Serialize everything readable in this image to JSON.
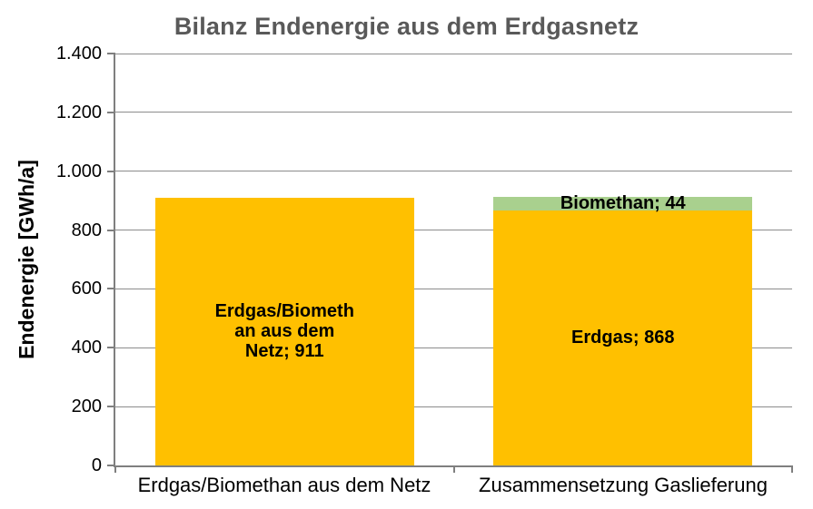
{
  "title": "Bilanz Endenergie aus dem Erdgasnetz",
  "y_axis": {
    "label": "Endenergie [GWh/a]",
    "ticks": [
      {
        "value": 1400,
        "label": "1.400"
      },
      {
        "value": 1200,
        "label": "1.200"
      },
      {
        "value": 1000,
        "label": "1.000"
      },
      {
        "value": 800,
        "label": "800"
      },
      {
        "value": 600,
        "label": "600"
      },
      {
        "value": 400,
        "label": "400"
      },
      {
        "value": 200,
        "label": "200"
      },
      {
        "value": 0,
        "label": "0"
      }
    ]
  },
  "x_axis": {
    "categories": [
      "Erdgas/Biomethan aus dem Netz",
      "Zusammensetzung Gaslieferung"
    ]
  },
  "bars": [
    {
      "category": "Erdgas/Biomethan aus dem Netz",
      "segments": [
        {
          "name": "Erdgas/Biomethan aus dem Netz",
          "value": 911,
          "color": "#FFC000",
          "label_lines": [
            "Erdgas/Biometh",
            "an aus dem",
            "Netz; 911"
          ]
        }
      ]
    },
    {
      "category": "Zusammensetzung Gaslieferung",
      "segments": [
        {
          "name": "Erdgas",
          "value": 868,
          "color": "#FFC000",
          "label_lines": [
            "Erdgas; 868"
          ]
        },
        {
          "name": "Biomethan",
          "value": 44,
          "color": "#A9D08E",
          "label_lines": [
            "Biomethan; 44"
          ]
        }
      ]
    }
  ],
  "colors": {
    "bar_yellow": "#FFC000",
    "bar_green": "#A9D08E",
    "axis_gray": "#7F7F7F",
    "gridline_gray": "#8C8C8C",
    "title_gray": "#595959"
  },
  "chart_data": {
    "type": "bar",
    "stacked": true,
    "title": "Bilanz Endenergie aus dem Erdgasnetz",
    "xlabel": "",
    "ylabel": "Endenergie [GWh/a]",
    "categories": [
      "Erdgas/Biomethan aus dem Netz",
      "Zusammensetzung Gaslieferung"
    ],
    "series": [
      {
        "name": "Erdgas/Biomethan aus dem Netz",
        "color": "#FFC000",
        "values": [
          911,
          0
        ]
      },
      {
        "name": "Erdgas",
        "color": "#FFC000",
        "values": [
          0,
          868
        ]
      },
      {
        "name": "Biomethan",
        "color": "#A9D08E",
        "values": [
          0,
          44
        ]
      }
    ],
    "data_labels": [
      "Erdgas/Biomethan aus dem Netz; 911",
      "Erdgas; 868",
      "Biomethan; 44"
    ],
    "ylim": [
      0,
      1400
    ],
    "ytick_step": 200,
    "ytick_labels": [
      "0",
      "200",
      "400",
      "600",
      "800",
      "1.000",
      "1.200",
      "1.400"
    ],
    "grid": true,
    "legend_position": "none"
  }
}
